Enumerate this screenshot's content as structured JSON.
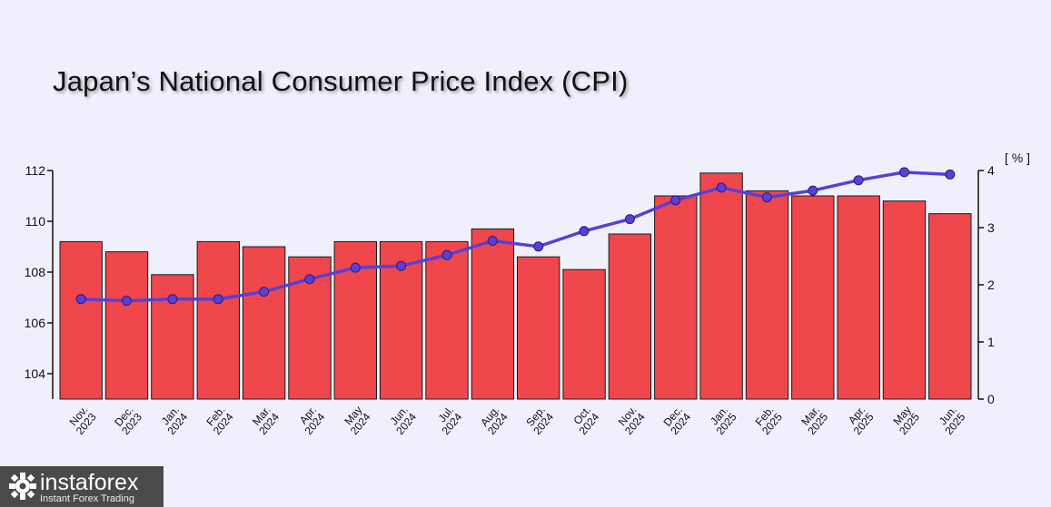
{
  "chart_data": {
    "type": "bar",
    "title": "Japan’s National Consumer Price Index (CPI)",
    "categories": [
      [
        "Nov.",
        "2023"
      ],
      [
        "Dec.",
        "2023"
      ],
      [
        "Jan.",
        "2024"
      ],
      [
        "Feb.",
        "2024"
      ],
      [
        "Mar.",
        "2024"
      ],
      [
        "Apr.",
        "2024"
      ],
      [
        "May",
        "2024"
      ],
      [
        "Jun.",
        "2024"
      ],
      [
        "Jul.",
        "2024"
      ],
      [
        "Aug.",
        "2024"
      ],
      [
        "Sep.",
        "2024"
      ],
      [
        "Oct.",
        "2024"
      ],
      [
        "Nov.",
        "2024"
      ],
      [
        "Dec.",
        "2024"
      ],
      [
        "Jan.",
        "2025"
      ],
      [
        "Feb.",
        "2025"
      ],
      [
        "Mar.",
        "2025"
      ],
      [
        "Apr.",
        "2025"
      ],
      [
        "May",
        "2025"
      ],
      [
        "Jun.",
        "2025"
      ]
    ],
    "series": [
      {
        "type": "bar",
        "axis": "left",
        "color": "#f0474c",
        "values": [
          109.2,
          108.8,
          107.9,
          109.2,
          109.0,
          108.6,
          109.2,
          109.2,
          109.2,
          109.7,
          108.6,
          108.1,
          109.5,
          111.0,
          111.9,
          111.2,
          111.0,
          111.0,
          110.8,
          110.3
        ]
      },
      {
        "type": "line",
        "axis": "right",
        "color": "#5a3fd6",
        "values": [
          1.75,
          1.72,
          1.75,
          1.75,
          1.88,
          2.1,
          2.3,
          2.33,
          2.52,
          2.77,
          2.67,
          2.94,
          3.15,
          3.48,
          3.7,
          3.53,
          3.65,
          3.83,
          3.97,
          3.93
        ]
      }
    ],
    "y_left": {
      "min": 103,
      "max": 112,
      "ticks": [
        104,
        106,
        108,
        110,
        112
      ]
    },
    "y_right": {
      "min": 0,
      "max": 4,
      "ticks": [
        0,
        1,
        2,
        3,
        4
      ],
      "unit_label": "[ % ]"
    },
    "grid": false
  },
  "branding": {
    "logo_name": "instaforex",
    "logo_tagline": "Instant Forex Trading"
  }
}
